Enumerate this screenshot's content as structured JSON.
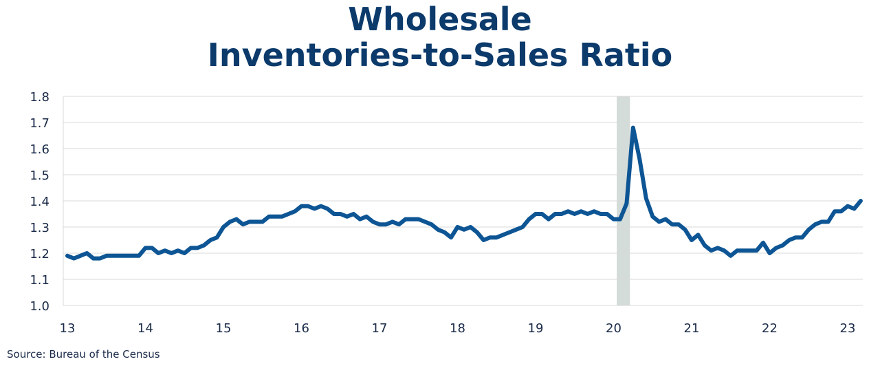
{
  "title_line1": "Wholesale",
  "title_line2": "Inventories-to-Sales Ratio",
  "source": "Source:  Bureau of the Census",
  "chart_data": {
    "type": "line",
    "title": "Wholesale Inventories-to-Sales Ratio",
    "xlabel": "",
    "ylabel": "",
    "x_tick_labels": [
      "13",
      "14",
      "15",
      "16",
      "17",
      "18",
      "19",
      "20",
      "21",
      "22",
      "23"
    ],
    "y_tick_labels": [
      "1.0",
      "1.1",
      "1.2",
      "1.3",
      "1.4",
      "1.5",
      "1.6",
      "1.7",
      "1.8"
    ],
    "xlim": [
      2013.0,
      2023.25
    ],
    "ylim": [
      1.0,
      1.8
    ],
    "grid": true,
    "line_color": "#0d5594",
    "recession_color": "#d4dcd9",
    "recession_band": {
      "start": 2020.04,
      "end": 2020.21
    },
    "series": [
      {
        "name": "",
        "x_start": 2013.0,
        "x_step": 0.0833333,
        "values": [
          1.19,
          1.18,
          1.19,
          1.2,
          1.18,
          1.18,
          1.19,
          1.19,
          1.19,
          1.19,
          1.19,
          1.19,
          1.22,
          1.22,
          1.2,
          1.21,
          1.2,
          1.21,
          1.2,
          1.22,
          1.22,
          1.23,
          1.25,
          1.26,
          1.3,
          1.32,
          1.33,
          1.31,
          1.32,
          1.32,
          1.32,
          1.34,
          1.34,
          1.34,
          1.35,
          1.36,
          1.38,
          1.38,
          1.37,
          1.38,
          1.37,
          1.35,
          1.35,
          1.34,
          1.35,
          1.33,
          1.34,
          1.32,
          1.31,
          1.31,
          1.32,
          1.31,
          1.33,
          1.33,
          1.33,
          1.32,
          1.31,
          1.29,
          1.28,
          1.26,
          1.3,
          1.29,
          1.3,
          1.28,
          1.25,
          1.26,
          1.26,
          1.27,
          1.28,
          1.29,
          1.3,
          1.33,
          1.35,
          1.35,
          1.33,
          1.35,
          1.35,
          1.36,
          1.35,
          1.36,
          1.35,
          1.36,
          1.35,
          1.35,
          1.33,
          1.33,
          1.39,
          1.68,
          1.56,
          1.41,
          1.34,
          1.32,
          1.33,
          1.31,
          1.31,
          1.29,
          1.25,
          1.27,
          1.23,
          1.21,
          1.22,
          1.21,
          1.19,
          1.21,
          1.21,
          1.21,
          1.21,
          1.24,
          1.2,
          1.22,
          1.23,
          1.25,
          1.26,
          1.26,
          1.29,
          1.31,
          1.32,
          1.32,
          1.36,
          1.36,
          1.38,
          1.37,
          1.4
        ]
      }
    ]
  }
}
